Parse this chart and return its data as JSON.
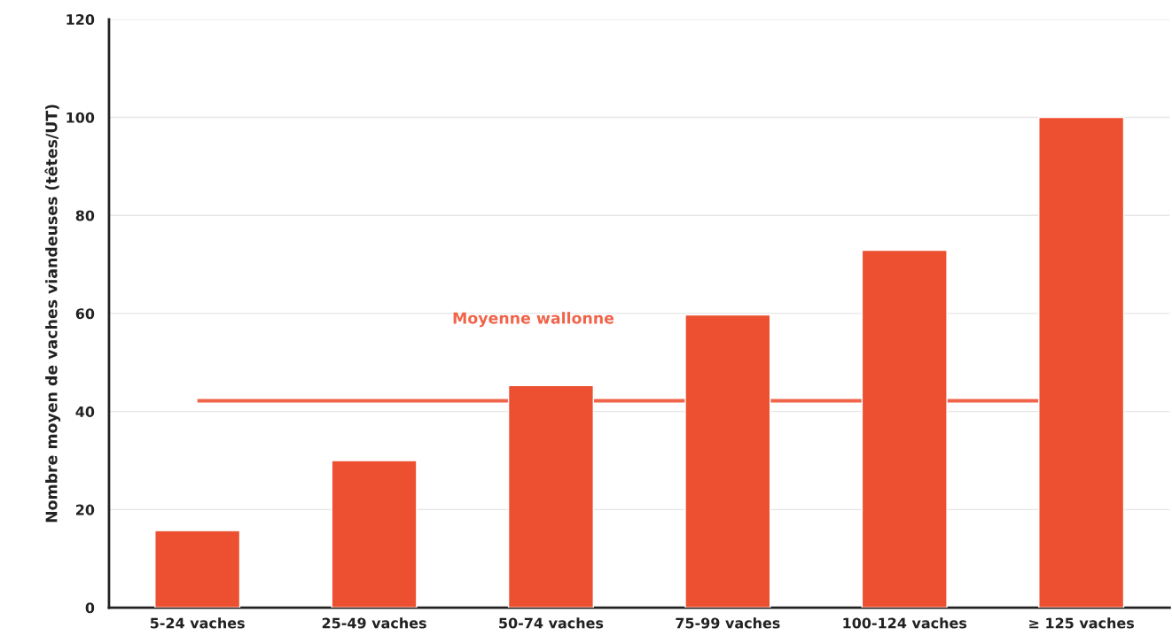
{
  "chart_data": {
    "type": "bar",
    "ylabel": "Nombre moyen de vaches viandeuses (têtes/UT)",
    "categories": [
      "5-24 vaches",
      "25-49 vaches",
      "50-74 vaches",
      "75-99 vaches",
      "100-124 vaches",
      "≥ 125 vaches"
    ],
    "values": [
      15.7,
      30,
      45.3,
      59.7,
      72.9,
      100
    ],
    "color": "#ec5030",
    "ylim": [
      0,
      120
    ],
    "yticks": [
      0,
      20,
      40,
      60,
      80,
      100,
      120
    ],
    "grid": "y",
    "ref_lines": [
      {
        "axis": "y",
        "value": 42.2,
        "label": "Moyenne wallonne",
        "color": "#f0644a",
        "line_style": "solid"
      }
    ]
  }
}
